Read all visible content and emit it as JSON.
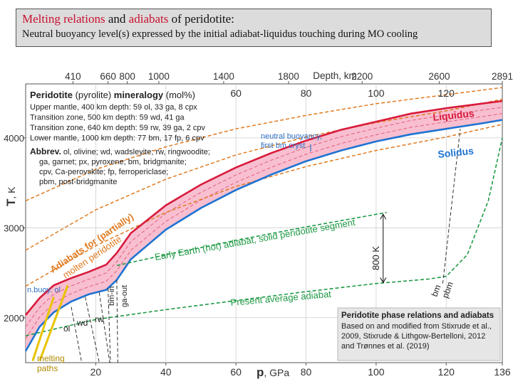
{
  "header": {
    "title_part1": "Melting relations",
    "title_part2": " and ",
    "title_part3": "adiabats",
    "title_part4": " of peridotite:",
    "subtitle": "Neutral buoyancy level(s) expressed by the initial adiabat-liquidus touching during MO cooling"
  },
  "colors": {
    "liquidus": "#d81b3c",
    "solidus": "#1e73d2",
    "melt_fill": "#f7b4c8",
    "adiabat_hot": "#e07a1f",
    "adiabat_present": "#1f9a46",
    "melting_paths": "#e8c300",
    "label_blue": "#2f6fc4",
    "text_dark": "#222222"
  },
  "chart_data": {
    "type": "line",
    "xlabel": "p",
    "xlabel_unit": ", GPa",
    "ylabel": "T",
    "ylabel_unit": ", K",
    "xlim": [
      0,
      136
    ],
    "ylim": [
      1500,
      4600
    ],
    "x_ticks": [
      20,
      40,
      60,
      80,
      100,
      120,
      136
    ],
    "y_ticks": [
      2000,
      3000,
      4000
    ],
    "depth_axis": {
      "label": "Depth, km",
      "ticks": [
        {
          "label": "410",
          "p": 13.5
        },
        {
          "label": "660",
          "p": 23.5
        },
        {
          "label": "800",
          "p": 29
        },
        {
          "label": "1000",
          "p": 38
        },
        {
          "label": "1400",
          "p": 56.5
        },
        {
          "label": "1800",
          "p": 75
        },
        {
          "label": "2200",
          "p": 96
        },
        {
          "label": "2600",
          "p": 118
        },
        {
          "label": "2891",
          "p": 136
        }
      ]
    },
    "inner_ticks": [
      {
        "label": "60",
        "p": 60
      },
      {
        "label": "80",
        "p": 80
      },
      {
        "label": "100",
        "p": 100
      },
      {
        "label": "120",
        "p": 120
      }
    ],
    "series": [
      {
        "name": "Liquidus",
        "x": [
          0,
          4,
          8,
          13,
          18,
          23,
          26,
          30,
          40,
          50,
          60,
          70,
          80,
          90,
          100,
          110,
          120,
          130,
          136
        ],
        "y": [
          2030,
          2220,
          2360,
          2440,
          2510,
          2590,
          2720,
          2940,
          3250,
          3480,
          3670,
          3830,
          3970,
          4090,
          4180,
          4270,
          4330,
          4380,
          4410
        ]
      },
      {
        "name": "Solidus",
        "x": [
          0,
          4,
          8,
          13,
          18,
          23,
          26,
          30,
          40,
          50,
          60,
          70,
          80,
          90,
          100,
          110,
          120,
          130,
          136
        ],
        "y": [
          1630,
          1900,
          2060,
          2180,
          2260,
          2310,
          2420,
          2650,
          2980,
          3220,
          3420,
          3590,
          3740,
          3860,
          3960,
          4040,
          4100,
          4160,
          4200
        ]
      },
      {
        "name": "",
        "x": [
          0,
          20,
          40,
          60,
          80,
          100,
          120,
          136
        ],
        "y": [
          3300,
          3650,
          3900,
          4100,
          4250,
          4380,
          4480,
          4560
        ]
      },
      {
        "name": "",
        "x": [
          0,
          20,
          40,
          60,
          80,
          100,
          120,
          136
        ],
        "y": [
          2750,
          3200,
          3540,
          3810,
          4010,
          4170,
          4300,
          4430
        ]
      },
      {
        "name": "",
        "x": [
          0,
          20,
          40,
          60,
          80,
          100,
          120,
          136
        ],
        "y": [
          2350,
          2800,
          3170,
          3460,
          3680,
          3860,
          4010,
          4150
        ]
      },
      {
        "name": "Early Earth (hot) adiabat, solid peridotite segment",
        "x": [
          26,
          40,
          60,
          80,
          100,
          103
        ],
        "y": [
          2580,
          2700,
          2860,
          3010,
          3150,
          3170
        ]
      },
      {
        "name": "Present average adiabat",
        "x": [
          0,
          20,
          40,
          60,
          80,
          100,
          115,
          120,
          126,
          132,
          136
        ],
        "y": [
          1800,
          1980,
          2090,
          2190,
          2290,
          2380,
          2430,
          2460,
          2700,
          3300,
          4000
        ]
      }
    ],
    "annotations": {
      "liquidus_label": "Liquidus",
      "solidus_label": "Solidus",
      "neutral_buoyancy": [
        "neutral buoyancy,",
        "first bm cryst."
      ],
      "n_buoy_ol": "n.buoy. ol",
      "adiabats_label": [
        "Adiabats for (partially)",
        "molten peridotite"
      ],
      "early_earth_label": "Early Earth (hot) adiabat, solid peridotite segment",
      "present_label": "Present average adiabat",
      "delta_label": "800 K",
      "melting_paths": [
        "melting",
        "paths"
      ],
      "phase_ol": "ol",
      "phase_wd": "wd",
      "phase_rw": "rw",
      "phase_bm_in": "bm-in",
      "phase_ga_out": "ga-out",
      "phase_bm": "bm",
      "phase_pbm": "pbm"
    },
    "mineralogy_box": {
      "title_a": "Peridotite",
      "title_b": " (pyrolite) ",
      "title_c": "mineralogy",
      "title_d": " (mol%)",
      "lines": [
        "Upper mantle, 400 km depth: 59 ol, 33 ga, 8 cpx",
        "Transition zone, 500 km depth: 59 wd, 41 ga",
        "Transition zone, 640 km depth: 59 rw, 39 ga, 2 cpv",
        "Lower mantle, 1000 km depth: 77 bm, 17 fp, 6 cpv"
      ],
      "abbrev_head": "Abbrev.",
      "abbrev_lines": [
        " ol, olivine; wd, wadsleyite; rw, ringwoodite;",
        "ga, garnet; px, pyroxene; bm, bridgmanite;",
        "cpv, Ca-perovskite; fp, ferropericlase;",
        "pbm, post-bridgmanite"
      ]
    },
    "source_box": {
      "title": "Peridotite phase relations and adiabats",
      "lines": [
        "Based on and modified from Stixrude et al.,",
        "2009, Stixrude & Lithgow-Bertelloni, 2012",
        "and Trønnes et al. (2019)"
      ]
    }
  }
}
